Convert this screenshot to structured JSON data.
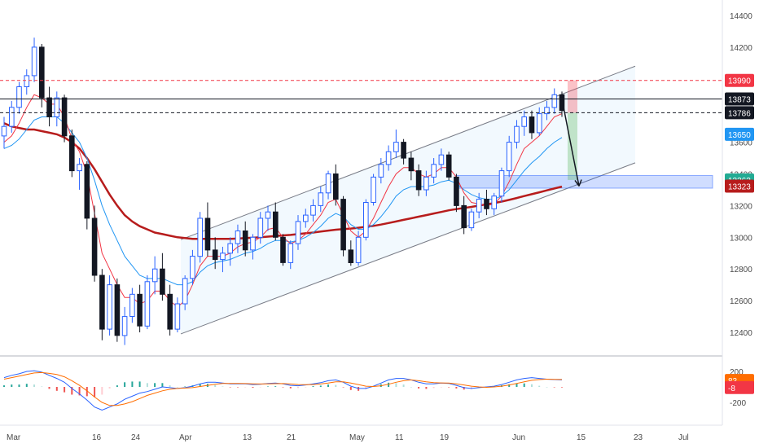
{
  "chart_data": [
    {
      "type": "candlestick",
      "title": "",
      "xlabel": "",
      "ylabel": "",
      "ylim": [
        12290,
        14500
      ],
      "y_ticks": [
        12400,
        12600,
        12800,
        13000,
        13200,
        13400,
        13600,
        13800,
        14000,
        14200,
        14400
      ],
      "x_ticks": [
        "Mar",
        "16",
        "24",
        "Apr",
        "13",
        "21",
        "May",
        "11",
        "19",
        "Jun",
        "15",
        "23",
        "Jul"
      ],
      "grid": false,
      "price_ohlc": [
        [
          13640,
          13760,
          13560,
          13700
        ],
        [
          13700,
          13860,
          13660,
          13820
        ],
        [
          13820,
          13980,
          13780,
          13950
        ],
        [
          13950,
          14060,
          13900,
          14020
        ],
        [
          14020,
          14260,
          13980,
          14200
        ],
        [
          14200,
          14220,
          13820,
          13880
        ],
        [
          13880,
          13950,
          13700,
          13760
        ],
        [
          13760,
          13920,
          13700,
          13880
        ],
        [
          13880,
          13900,
          13600,
          13640
        ],
        [
          13640,
          13680,
          13380,
          13420
        ],
        [
          13420,
          13500,
          13300,
          13460
        ],
        [
          13460,
          13480,
          13050,
          13120
        ],
        [
          13120,
          13200,
          12720,
          12760
        ],
        [
          12760,
          12800,
          12350,
          12420
        ],
        [
          12420,
          12760,
          12380,
          12700
        ],
        [
          12700,
          12740,
          12340,
          12380
        ],
        [
          12380,
          12560,
          12320,
          12500
        ],
        [
          12500,
          12680,
          12460,
          12640
        ],
        [
          12640,
          12700,
          12400,
          12440
        ],
        [
          12440,
          12760,
          12420,
          12720
        ],
        [
          12720,
          12880,
          12640,
          12800
        ],
        [
          12800,
          12900,
          12600,
          12640
        ],
        [
          12640,
          12700,
          12380,
          12420
        ],
        [
          12420,
          12620,
          12400,
          12580
        ],
        [
          12580,
          12760,
          12540,
          12740
        ],
        [
          12740,
          12920,
          12700,
          12880
        ],
        [
          12880,
          13160,
          12840,
          13120
        ],
        [
          13120,
          13220,
          12880,
          12920
        ],
        [
          12920,
          13000,
          12800,
          12860
        ],
        [
          12860,
          12940,
          12780,
          12900
        ],
        [
          12900,
          13000,
          12820,
          12960
        ],
        [
          12960,
          13080,
          12900,
          13040
        ],
        [
          13040,
          13100,
          12880,
          12920
        ],
        [
          12920,
          13020,
          12860,
          13000
        ],
        [
          13000,
          13160,
          12960,
          13120
        ],
        [
          13120,
          13200,
          13040,
          13160
        ],
        [
          13160,
          13220,
          12980,
          13000
        ],
        [
          13000,
          13020,
          12820,
          12840
        ],
        [
          12840,
          12980,
          12800,
          12960
        ],
        [
          12960,
          13140,
          12920,
          13100
        ],
        [
          13100,
          13180,
          13060,
          13140
        ],
        [
          13140,
          13240,
          13100,
          13200
        ],
        [
          13200,
          13320,
          13160,
          13280
        ],
        [
          13280,
          13420,
          13240,
          13400
        ],
        [
          13400,
          13460,
          13200,
          13240
        ],
        [
          13240,
          13260,
          12880,
          12920
        ],
        [
          12920,
          12980,
          12820,
          12840
        ],
        [
          12840,
          13040,
          12820,
          13000
        ],
        [
          13000,
          13240,
          12980,
          13220
        ],
        [
          13220,
          13400,
          13200,
          13380
        ],
        [
          13380,
          13500,
          13340,
          13460
        ],
        [
          13460,
          13580,
          13420,
          13540
        ],
        [
          13540,
          13680,
          13500,
          13600
        ],
        [
          13600,
          13620,
          13460,
          13500
        ],
        [
          13500,
          13540,
          13360,
          13420
        ],
        [
          13420,
          13460,
          13260,
          13300
        ],
        [
          13300,
          13420,
          13260,
          13380
        ],
        [
          13380,
          13500,
          13340,
          13460
        ],
        [
          13460,
          13560,
          13420,
          13520
        ],
        [
          13520,
          13540,
          13360,
          13380
        ],
        [
          13380,
          13400,
          13160,
          13200
        ],
        [
          13200,
          13260,
          13020,
          13060
        ],
        [
          13060,
          13180,
          13040,
          13160
        ],
        [
          13160,
          13280,
          13120,
          13240
        ],
        [
          13240,
          13300,
          13140,
          13180
        ],
        [
          13180,
          13280,
          13140,
          13260
        ],
        [
          13260,
          13440,
          13220,
          13420
        ],
        [
          13420,
          13640,
          13380,
          13600
        ],
        [
          13600,
          13740,
          13560,
          13700
        ],
        [
          13700,
          13800,
          13640,
          13760
        ],
        [
          13760,
          13800,
          13620,
          13660
        ],
        [
          13660,
          13820,
          13640,
          13780
        ],
        [
          13780,
          13860,
          13740,
          13820
        ],
        [
          13820,
          13940,
          13780,
          13900
        ],
        [
          13900,
          13920,
          13760,
          13800
        ]
      ],
      "ema_fast": [
        13600,
        13640,
        13720,
        13820,
        13900,
        13880,
        13840,
        13840,
        13760,
        13620,
        13540,
        13400,
        13150,
        12900,
        12800,
        12700,
        12620,
        12620,
        12580,
        12600,
        12660,
        12660,
        12600,
        12560,
        12600,
        12700,
        12820,
        12880,
        12880,
        12880,
        12900,
        12940,
        12960,
        12970,
        13000,
        13050,
        13060,
        13000,
        12960,
        12980,
        13020,
        13080,
        13140,
        13220,
        13240,
        13140,
        13040,
        13000,
        13040,
        13120,
        13220,
        13320,
        13400,
        13440,
        13440,
        13400,
        13380,
        13400,
        13440,
        13440,
        13380,
        13280,
        13220,
        13210,
        13200,
        13210,
        13260,
        13350,
        13460,
        13560,
        13600,
        13640,
        13700,
        13760,
        13780
      ],
      "ema_mid": [
        13560,
        13580,
        13620,
        13680,
        13740,
        13760,
        13760,
        13760,
        13720,
        13660,
        13600,
        13500,
        13360,
        13200,
        13080,
        12980,
        12880,
        12820,
        12760,
        12740,
        12740,
        12740,
        12720,
        12700,
        12700,
        12720,
        12780,
        12820,
        12840,
        12850,
        12860,
        12880,
        12900,
        12910,
        12930,
        12960,
        12980,
        12980,
        12970,
        12980,
        13000,
        13030,
        13070,
        13120,
        13150,
        13130,
        13080,
        13050,
        13050,
        13080,
        13130,
        13190,
        13260,
        13300,
        13320,
        13320,
        13320,
        13330,
        13350,
        13360,
        13340,
        13300,
        13270,
        13250,
        13240,
        13240,
        13260,
        13300,
        13360,
        13420,
        13470,
        13510,
        13560,
        13600,
        13630
      ],
      "ema_slow": [
        13720,
        13700,
        13690,
        13680,
        13680,
        13670,
        13660,
        13650,
        13630,
        13600,
        13560,
        13500,
        13430,
        13350,
        13270,
        13200,
        13140,
        13100,
        13070,
        13050,
        13030,
        13020,
        13010,
        13000,
        12995,
        12990,
        12990,
        12990,
        12990,
        12990,
        12990,
        12992,
        12995,
        12997,
        13000,
        13004,
        13008,
        13012,
        13015,
        13020,
        13025,
        13030,
        13036,
        13042,
        13048,
        13052,
        13055,
        13060,
        13066,
        13072,
        13080,
        13090,
        13100,
        13110,
        13120,
        13130,
        13140,
        13150,
        13160,
        13170,
        13178,
        13185,
        13192,
        13200,
        13208,
        13216,
        13225,
        13236,
        13248,
        13260,
        13272,
        13284,
        13296,
        13308,
        13320
      ],
      "series": [
        {
          "name": "",
          "color": "#f23645"
        },
        {
          "name": "",
          "color": "#2196f3"
        },
        {
          "name": "",
          "color": "#b71c1c"
        }
      ],
      "levels": [
        {
          "value": 13990,
          "label": "13990",
          "color": "#f23645",
          "style": "dashed"
        },
        {
          "value": 13873,
          "label": "13873",
          "color": "#131722",
          "style": "solid"
        },
        {
          "value": 13786,
          "label": "13786",
          "color": "#131722",
          "style": "dashed"
        },
        {
          "value": 13650,
          "label": "13650",
          "color": "#2196f3",
          "style": "label"
        },
        {
          "value": 13362,
          "label": "13362",
          "color": "#22ab94",
          "style": "label"
        },
        {
          "value": 13323,
          "label": "13323",
          "color": "#b71c1c",
          "style": "label"
        }
      ],
      "support_zone": [
        13310,
        13390
      ],
      "channel": {
        "upper": [
          [
            12985,
            14080
          ]
        ],
        "lower": [
          [
            12390,
            13470
          ]
        ]
      },
      "projection": {
        "from": 13873,
        "to": 13323
      },
      "position_box": {
        "entry": 13786,
        "stop": 13990,
        "target": 13362
      }
    },
    {
      "type": "macd",
      "y_ticks": [
        200,
        -200
      ],
      "ylim": [
        -350,
        300
      ],
      "labels": [
        {
          "value": 83,
          "label": "83",
          "color": "#ff6d00"
        },
        {
          "value": -8,
          "label": "-8",
          "color": "#f23645"
        }
      ],
      "macd": [
        120,
        150,
        170,
        200,
        210,
        190,
        150,
        110,
        60,
        -20,
        -90,
        -170,
        -260,
        -300,
        -260,
        -220,
        -160,
        -120,
        -80,
        -60,
        -30,
        0,
        -10,
        -20,
        -10,
        10,
        40,
        60,
        60,
        50,
        40,
        40,
        40,
        30,
        35,
        45,
        50,
        40,
        20,
        15,
        25,
        40,
        55,
        80,
        90,
        60,
        10,
        -20,
        -20,
        10,
        50,
        90,
        110,
        110,
        90,
        60,
        40,
        40,
        50,
        45,
        20,
        -10,
        -20,
        -10,
        0,
        10,
        30,
        60,
        90,
        110,
        120,
        110,
        100,
        95,
        90
      ],
      "signal": [
        100,
        120,
        140,
        160,
        180,
        185,
        175,
        160,
        130,
        80,
        20,
        -50,
        -130,
        -200,
        -240,
        -240,
        -220,
        -190,
        -150,
        -110,
        -80,
        -50,
        -30,
        -20,
        -15,
        -10,
        5,
        20,
        35,
        45,
        45,
        45,
        43,
        40,
        38,
        40,
        42,
        43,
        38,
        30,
        28,
        30,
        38,
        50,
        65,
        65,
        50,
        30,
        10,
        5,
        15,
        35,
        60,
        80,
        90,
        80,
        65,
        55,
        52,
        50,
        40,
        25,
        10,
        0,
        -5,
        0,
        10,
        25,
        45,
        65,
        85,
        95,
        100,
        98,
        96
      ],
      "histogram_colors": {
        "up_strong": "#26a69a",
        "up_weak": "#b2dfdb",
        "down_strong": "#ef5350",
        "down_weak": "#ffcdd2"
      }
    }
  ]
}
